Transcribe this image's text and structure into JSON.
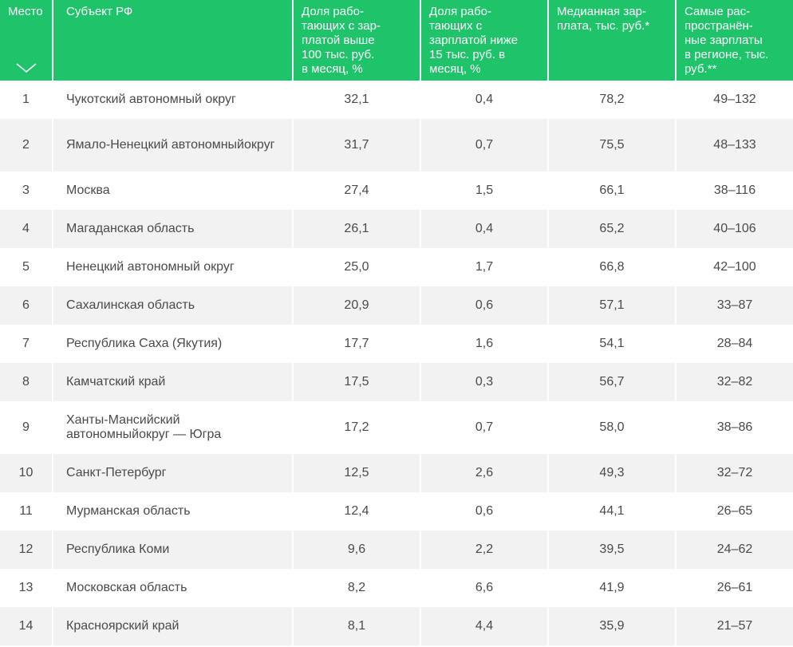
{
  "table": {
    "headers": {
      "place": "Место",
      "subject": "Субъект РФ",
      "share_high": [
        "Доля рабо-",
        "тающих с зар-",
        "платой выше",
        "100 тыс. руб.",
        "в месяц, %"
      ],
      "share_low": [
        "Доля рабо-",
        "тающих с",
        "зарплатой ниже",
        "15 тыс. руб. в",
        "месяц, %"
      ],
      "median": [
        "Медианная зар-",
        "плата, тыс. руб.*"
      ],
      "common": [
        "Самые рас-",
        "пространён-",
        "ные зарплаты",
        "в регионе, тыс.",
        "руб.**"
      ]
    },
    "sort_icon": "chevron-down-icon",
    "colors": {
      "header_bg": "#1ec36a",
      "stripe_bg": "#f2f2f2"
    },
    "rows": [
      {
        "place": "1",
        "subject": [
          "Чукотский автономный округ"
        ],
        "share_high": "32,1",
        "share_low": "0,4",
        "median": "78,2",
        "common": "49–132"
      },
      {
        "place": "2",
        "subject": [
          "Ямало-Ненецкий автономный",
          "округ"
        ],
        "share_high": "31,7",
        "share_low": "0,7",
        "median": "75,5",
        "common": "48–133"
      },
      {
        "place": "3",
        "subject": [
          "Москва"
        ],
        "share_high": "27,4",
        "share_low": "1,5",
        "median": "66,1",
        "common": "38–116"
      },
      {
        "place": "4",
        "subject": [
          "Магаданская область"
        ],
        "share_high": "26,1",
        "share_low": "0,4",
        "median": "65,2",
        "common": "40–106"
      },
      {
        "place": "5",
        "subject": [
          "Ненецкий автономный округ"
        ],
        "share_high": "25,0",
        "share_low": "1,7",
        "median": "66,8",
        "common": "42–100"
      },
      {
        "place": "6",
        "subject": [
          "Сахалинская область"
        ],
        "share_high": "20,9",
        "share_low": "0,6",
        "median": "57,1",
        "common": "33–87"
      },
      {
        "place": "7",
        "subject": [
          "Республика Саха (Якутия)"
        ],
        "share_high": "17,7",
        "share_low": "1,6",
        "median": "54,1",
        "common": "28–84"
      },
      {
        "place": "8",
        "subject": [
          "Камчатский край"
        ],
        "share_high": "17,5",
        "share_low": "0,3",
        "median": "56,7",
        "common": "32–82"
      },
      {
        "place": "9",
        "subject": [
          "Ханты-Мансийский автономный",
          "округ — Югра"
        ],
        "share_high": "17,2",
        "share_low": "0,7",
        "median": "58,0",
        "common": "38–86"
      },
      {
        "place": "10",
        "subject": [
          "Санкт-Петербург"
        ],
        "share_high": "12,5",
        "share_low": "2,6",
        "median": "49,3",
        "common": "32–72"
      },
      {
        "place": "11",
        "subject": [
          "Мурманская область"
        ],
        "share_high": "12,4",
        "share_low": "0,6",
        "median": "44,1",
        "common": "26–65"
      },
      {
        "place": "12",
        "subject": [
          "Республика Коми"
        ],
        "share_high": "9,6",
        "share_low": "2,2",
        "median": "39,5",
        "common": "24–62"
      },
      {
        "place": "13",
        "subject": [
          "Московская область"
        ],
        "share_high": "8,2",
        "share_low": "6,6",
        "median": "41,9",
        "common": "26–61"
      },
      {
        "place": "14",
        "subject": [
          "Красноярский край"
        ],
        "share_high": "8,1",
        "share_low": "4,4",
        "median": "35,9",
        "common": "21–57"
      }
    ]
  }
}
